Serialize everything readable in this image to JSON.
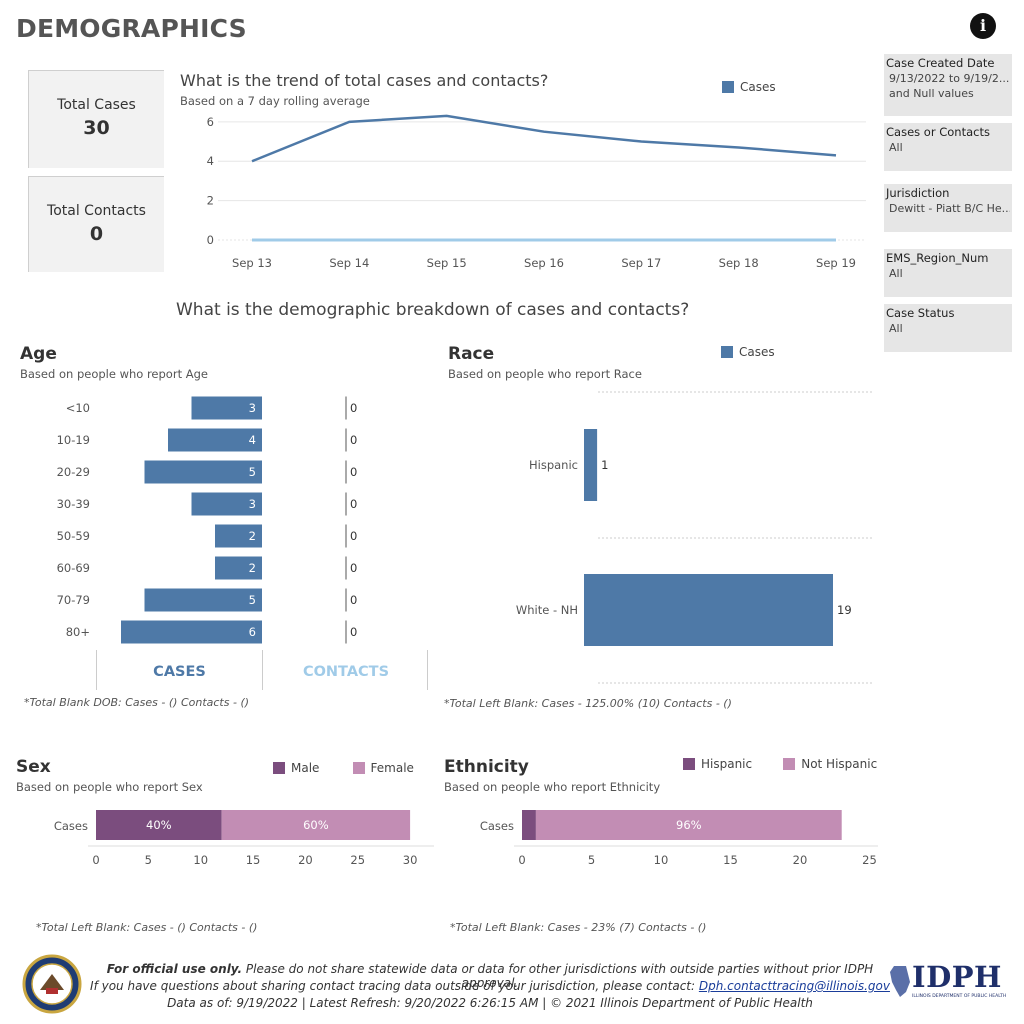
{
  "header": {
    "title": "DEMOGRAPHICS",
    "info_icon": "info-icon"
  },
  "kpis": [
    {
      "label": "Total Cases",
      "value": "30"
    },
    {
      "label": "Total Contacts",
      "value": "0"
    }
  ],
  "filters": [
    {
      "label": "Case Created Date",
      "values": [
        "9/13/2022 to 9/19/2...",
        "and Null values"
      ]
    },
    {
      "label": "Cases or Contacts",
      "values": [
        "All"
      ]
    },
    {
      "label": "Jurisdiction",
      "values": [
        "Dewitt - Piatt B/C He..."
      ]
    },
    {
      "label": "EMS_Region_Num",
      "values": [
        "All"
      ]
    },
    {
      "label": "Case Status",
      "values": [
        "All"
      ]
    }
  ],
  "colors": {
    "cases": "#4e79a7",
    "contacts": "#a0cbe8",
    "male": "#7b4d7e",
    "female": "#c28db4"
  },
  "trend": {
    "title": "What is the trend of total cases and contacts?",
    "subtitle": "Based on a 7 day rolling average",
    "legend": "Cases"
  },
  "breakdown_title": "What is the demographic breakdown of cases and contacts?",
  "age": {
    "title": "Age",
    "subtitle": "Based on people who report Age",
    "tab_cases": "CASES",
    "tab_contacts": "CONTACTS",
    "note": "*Total Blank DOB: Cases -  () Contacts -  ()"
  },
  "race": {
    "title": "Race",
    "subtitle": "Based on people who report Race",
    "legend": "Cases",
    "note": "*Total Left Blank: Cases - 125.00% (10) Contacts -  ()"
  },
  "sex": {
    "title": "Sex",
    "subtitle": "Based on people who report Sex",
    "legend": [
      "Male",
      "Female"
    ],
    "note": "*Total Left Blank: Cases -  () Contacts -  ()"
  },
  "ethnicity": {
    "title": "Ethnicity",
    "subtitle": "Based on people who report Ethnicity",
    "legend": [
      "Hispanic",
      "Not Hispanic"
    ],
    "note": "*Total Left Blank: Cases - 23% (7) Contacts -  ()"
  },
  "footer": {
    "line1_bold": "For official use only.",
    "line1_rest": " Please do not share statewide data or data for other jurisdictions with outside parties without prior IDPH approval.",
    "line2": "If you have questions about sharing contact tracing data outside of your jurisdiction, please contact: ",
    "line2_link": "Dph.contacttracing@illinois.gov",
    "line3": "Data as of: 9/19/2022  |  Latest Refresh: 9/20/2022 6:26:15 AM  |  © 2021 Illinois Department of Public Health",
    "logo_text": "IDPH",
    "logo_sub": "ILLINOIS DEPARTMENT OF PUBLIC HEALTH"
  },
  "chart_data": [
    {
      "type": "line",
      "title": "What is the trend of total cases and contacts?",
      "x": [
        "Sep 13",
        "Sep 14",
        "Sep 15",
        "Sep 16",
        "Sep 17",
        "Sep 18",
        "Sep 19"
      ],
      "series": [
        {
          "name": "Cases",
          "values": [
            4.0,
            6.0,
            6.3,
            5.5,
            5.0,
            4.7,
            4.3
          ]
        },
        {
          "values": [
            0,
            0,
            0,
            0,
            0,
            0,
            0
          ]
        }
      ],
      "yticks": [
        0,
        2,
        4,
        6
      ],
      "ylim": [
        0,
        6.5
      ]
    },
    {
      "type": "bar",
      "title": "Age",
      "categories": [
        "<10",
        "10-19",
        "20-29",
        "30-39",
        "50-59",
        "60-69",
        "70-79",
        "80+"
      ],
      "series": [
        {
          "name": "CASES",
          "values": [
            3,
            4,
            5,
            3,
            2,
            2,
            5,
            6
          ]
        },
        {
          "name": "CONTACTS",
          "values": [
            0,
            0,
            0,
            0,
            0,
            0,
            0,
            0
          ]
        }
      ]
    },
    {
      "type": "bar",
      "title": "Race",
      "categories": [
        "Hispanic",
        "White - NH"
      ],
      "series": [
        {
          "name": "Cases",
          "values": [
            1,
            19
          ]
        }
      ],
      "xlim": [
        0,
        19
      ]
    },
    {
      "type": "bar",
      "title": "Sex",
      "categories": [
        "Cases"
      ],
      "series": [
        {
          "name": "Male",
          "values": [
            12
          ],
          "label": "40%"
        },
        {
          "name": "Female",
          "values": [
            18
          ],
          "label": "60%"
        }
      ],
      "xticks": [
        0,
        5,
        10,
        15,
        20,
        25,
        30
      ],
      "xlim": [
        0,
        30
      ]
    },
    {
      "type": "bar",
      "title": "Ethnicity",
      "categories": [
        "Cases"
      ],
      "series": [
        {
          "name": "Hispanic",
          "values": [
            1
          ],
          "label": ""
        },
        {
          "name": "Not Hispanic",
          "values": [
            22
          ],
          "label": "96%"
        }
      ],
      "xticks": [
        0,
        5,
        10,
        15,
        20,
        25
      ],
      "xlim": [
        0,
        25
      ]
    }
  ]
}
